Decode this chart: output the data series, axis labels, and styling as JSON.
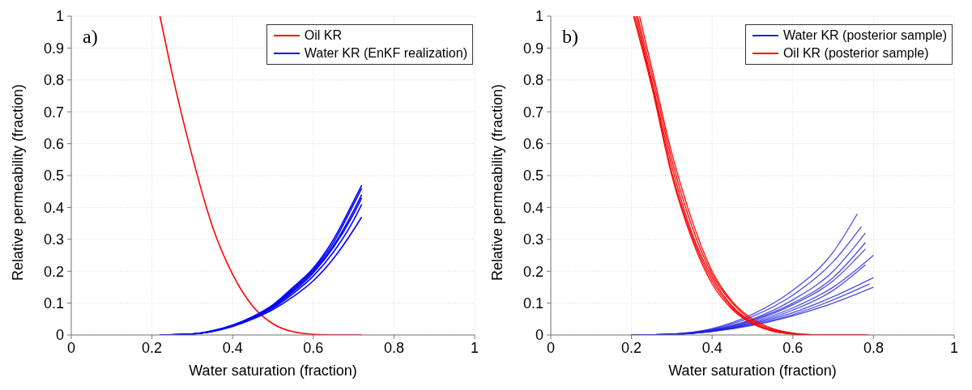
{
  "chart_data": [
    {
      "type": "line",
      "xlabel": "Water saturation (fraction)",
      "ylabel": "Relative permeability (fraction)",
      "annotations": [
        "a)"
      ],
      "xlim": [
        0,
        1
      ],
      "ylim": [
        0,
        1
      ],
      "xticks": [
        0,
        0.2,
        0.4,
        0.6,
        0.8,
        1
      ],
      "yticks": [
        0,
        0.1,
        0.2,
        0.3,
        0.4,
        0.5,
        0.6,
        0.7,
        0.8,
        0.9,
        1
      ],
      "grid": true,
      "legend": "top right",
      "marker": "none",
      "line_style": "solid",
      "series": [
        {
          "name": "Oil KR",
          "color": "#ff0000",
          "x": [
            0.22,
            0.25,
            0.3,
            0.35,
            0.4,
            0.45,
            0.5,
            0.55,
            0.6,
            0.65,
            0.72
          ],
          "values": [
            1,
            0.82,
            0.56,
            0.34,
            0.19,
            0.09,
            0.035,
            0.01,
            0.002,
            0,
            0
          ]
        },
        {
          "name": "Water KR (EnKF realization)",
          "color": "#0000ff",
          "x": [
            0.22,
            0.3,
            0.35,
            0.4,
            0.45,
            0.5,
            0.55,
            0.6,
            0.65,
            0.7,
            0.72
          ],
          "values": [
            0,
            0.003,
            0.013,
            0.031,
            0.058,
            0.095,
            0.15,
            0.21,
            0.3,
            0.42,
            0.47
          ]
        },
        {
          "color": "#0000ff",
          "x": [
            0.22,
            0.3,
            0.35,
            0.4,
            0.45,
            0.5,
            0.55,
            0.6,
            0.65,
            0.7,
            0.72
          ],
          "values": [
            0,
            0.003,
            0.013,
            0.03,
            0.056,
            0.092,
            0.145,
            0.205,
            0.29,
            0.41,
            0.46
          ]
        },
        {
          "color": "#0000ff",
          "x": [
            0.22,
            0.3,
            0.35,
            0.4,
            0.45,
            0.5,
            0.55,
            0.6,
            0.65,
            0.7,
            0.72
          ],
          "values": [
            0,
            0.003,
            0.012,
            0.03,
            0.055,
            0.09,
            0.14,
            0.2,
            0.28,
            0.39,
            0.44
          ]
        },
        {
          "color": "#0000ff",
          "x": [
            0.22,
            0.3,
            0.35,
            0.4,
            0.45,
            0.5,
            0.55,
            0.6,
            0.65,
            0.7,
            0.72
          ],
          "values": [
            0,
            0.003,
            0.012,
            0.029,
            0.054,
            0.088,
            0.136,
            0.195,
            0.275,
            0.38,
            0.43
          ]
        },
        {
          "color": "#0000ff",
          "x": [
            0.22,
            0.3,
            0.35,
            0.4,
            0.45,
            0.5,
            0.55,
            0.6,
            0.65,
            0.7,
            0.72
          ],
          "values": [
            0,
            0.003,
            0.012,
            0.028,
            0.052,
            0.085,
            0.13,
            0.185,
            0.26,
            0.36,
            0.41
          ]
        },
        {
          "color": "#0000ff",
          "x": [
            0.22,
            0.3,
            0.35,
            0.4,
            0.45,
            0.5,
            0.55,
            0.6,
            0.65,
            0.7,
            0.72
          ],
          "values": [
            0,
            0.003,
            0.011,
            0.027,
            0.05,
            0.08,
            0.12,
            0.17,
            0.24,
            0.33,
            0.37
          ]
        }
      ]
    },
    {
      "type": "line",
      "xlabel": "Water saturation (fraction)",
      "ylabel": "Relative permeability (fraction)",
      "annotations": [
        "b)"
      ],
      "xlim": [
        0,
        1
      ],
      "ylim": [
        0,
        1
      ],
      "xticks": [
        0,
        0.2,
        0.4,
        0.6,
        0.8,
        1
      ],
      "yticks": [
        0,
        0.1,
        0.2,
        0.3,
        0.4,
        0.5,
        0.6,
        0.7,
        0.8,
        0.9,
        1
      ],
      "grid": true,
      "legend": "top right",
      "marker": "none",
      "line_style": "solid",
      "series": [
        {
          "name": "Water KR (posterior sample)",
          "color": "#2020e0",
          "x": [
            0.2,
            0.3,
            0.4,
            0.5,
            0.6,
            0.7,
            0.76
          ],
          "values": [
            0,
            0.003,
            0.02,
            0.065,
            0.14,
            0.26,
            0.38
          ]
        },
        {
          "color": "#2020e0",
          "x": [
            0.2,
            0.3,
            0.4,
            0.5,
            0.6,
            0.7,
            0.77
          ],
          "values": [
            0,
            0.003,
            0.018,
            0.058,
            0.125,
            0.23,
            0.34
          ]
        },
        {
          "color": "#2020e0",
          "x": [
            0.2,
            0.3,
            0.4,
            0.5,
            0.6,
            0.7,
            0.78
          ],
          "values": [
            0,
            0.002,
            0.016,
            0.05,
            0.11,
            0.2,
            0.32
          ]
        },
        {
          "color": "#2020e0",
          "x": [
            0.2,
            0.3,
            0.4,
            0.5,
            0.6,
            0.7,
            0.78
          ],
          "values": [
            0,
            0.002,
            0.015,
            0.047,
            0.1,
            0.18,
            0.29
          ]
        },
        {
          "color": "#2020e0",
          "x": [
            0.2,
            0.3,
            0.4,
            0.5,
            0.6,
            0.7,
            0.78
          ],
          "values": [
            0,
            0.002,
            0.014,
            0.044,
            0.095,
            0.17,
            0.27
          ]
        },
        {
          "color": "#2020e0",
          "x": [
            0.2,
            0.3,
            0.4,
            0.5,
            0.6,
            0.7,
            0.8
          ],
          "values": [
            0,
            0.002,
            0.013,
            0.04,
            0.085,
            0.15,
            0.25
          ]
        },
        {
          "color": "#2020e0",
          "x": [
            0.2,
            0.3,
            0.4,
            0.5,
            0.6,
            0.7,
            0.78
          ],
          "values": [
            0,
            0.002,
            0.012,
            0.037,
            0.078,
            0.14,
            0.22
          ]
        },
        {
          "color": "#2020e0",
          "x": [
            0.2,
            0.3,
            0.4,
            0.5,
            0.6,
            0.7,
            0.8
          ],
          "values": [
            0,
            0.002,
            0.012,
            0.035,
            0.07,
            0.12,
            0.18
          ]
        },
        {
          "color": "#2020e0",
          "x": [
            0.2,
            0.3,
            0.4,
            0.5,
            0.6,
            0.7,
            0.79
          ],
          "values": [
            0,
            0.002,
            0.011,
            0.032,
            0.064,
            0.11,
            0.16
          ]
        },
        {
          "color": "#2020e0",
          "x": [
            0.2,
            0.3,
            0.4,
            0.5,
            0.6,
            0.7,
            0.8
          ],
          "values": [
            0,
            0.002,
            0.011,
            0.03,
            0.06,
            0.1,
            0.15
          ]
        },
        {
          "name": "Oil KR (posterior sample)",
          "color": "#ff0000",
          "x": [
            0.205,
            0.25,
            0.3,
            0.35,
            0.4,
            0.45,
            0.5,
            0.55,
            0.6,
            0.65,
            0.7,
            0.78
          ],
          "values": [
            1,
            0.78,
            0.5,
            0.3,
            0.16,
            0.08,
            0.035,
            0.012,
            0.003,
            0,
            0,
            0
          ]
        },
        {
          "color": "#ff0000",
          "x": [
            0.212,
            0.25,
            0.3,
            0.35,
            0.4,
            0.45,
            0.5,
            0.55,
            0.6,
            0.65,
            0.7,
            0.77
          ],
          "values": [
            1,
            0.8,
            0.53,
            0.32,
            0.18,
            0.09,
            0.04,
            0.014,
            0.004,
            0,
            0,
            0
          ]
        },
        {
          "color": "#ff0000",
          "x": [
            0.215,
            0.25,
            0.3,
            0.35,
            0.4,
            0.45,
            0.5,
            0.55,
            0.6,
            0.65,
            0.7,
            0.76
          ],
          "values": [
            1,
            0.82,
            0.55,
            0.34,
            0.19,
            0.1,
            0.045,
            0.017,
            0.005,
            0.001,
            0,
            0
          ]
        },
        {
          "color": "#ff0000",
          "x": [
            0.208,
            0.25,
            0.3,
            0.35,
            0.4,
            0.45,
            0.5,
            0.55,
            0.6,
            0.65,
            0.7,
            0.79
          ],
          "values": [
            1,
            0.79,
            0.51,
            0.31,
            0.17,
            0.085,
            0.038,
            0.013,
            0.003,
            0,
            0,
            0
          ]
        },
        {
          "color": "#ff0000",
          "x": [
            0.22,
            0.25,
            0.3,
            0.35,
            0.4,
            0.45,
            0.5,
            0.55,
            0.6,
            0.65,
            0.7,
            0.775
          ],
          "values": [
            1,
            0.84,
            0.57,
            0.36,
            0.2,
            0.105,
            0.05,
            0.02,
            0.006,
            0.001,
            0,
            0
          ]
        }
      ]
    }
  ]
}
